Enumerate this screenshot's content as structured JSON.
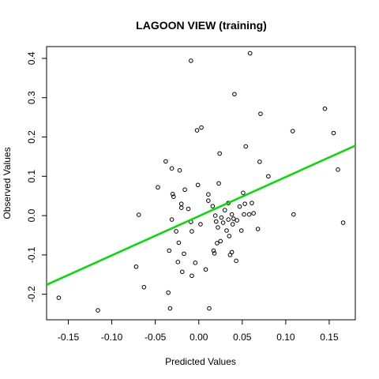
{
  "chart_data": {
    "type": "scatter",
    "title": "LAGOON VIEW (training)",
    "xlabel": "Predicted Values",
    "ylabel": "Observed Values",
    "xlim": [
      -0.175,
      0.18
    ],
    "ylim": [
      -0.265,
      0.43
    ],
    "x_ticks": [
      -0.15,
      -0.1,
      -0.05,
      0.0,
      0.05,
      0.1,
      0.15
    ],
    "x_tick_labels": [
      "-0.15",
      "-0.10",
      "-0.05",
      "0.00",
      "0.05",
      "0.10",
      "0.15"
    ],
    "y_ticks": [
      -0.2,
      -0.1,
      0.0,
      0.1,
      0.2,
      0.3,
      0.4
    ],
    "y_tick_labels": [
      "-0.2",
      "-0.1",
      "0.0",
      "0.1",
      "0.2",
      "0.3",
      "0.4"
    ],
    "grid": false,
    "legend": "none",
    "colors": {
      "points": "#000000",
      "fit_line": "#00dd00",
      "frame": "#000000"
    },
    "fit_line": {
      "x": [
        -0.175,
        0.18
      ],
      "y": [
        -0.176,
        0.178
      ]
    },
    "points": [
      {
        "x": -0.161,
        "y": -0.209
      },
      {
        "x": -0.116,
        "y": -0.241
      },
      {
        "x": -0.069,
        "y": 0.002
      },
      {
        "x": -0.072,
        "y": -0.13
      },
      {
        "x": -0.063,
        "y": -0.182
      },
      {
        "x": -0.047,
        "y": 0.072
      },
      {
        "x": -0.038,
        "y": 0.138
      },
      {
        "x": -0.035,
        "y": -0.196
      },
      {
        "x": -0.033,
        "y": -0.236
      },
      {
        "x": -0.034,
        "y": -0.089
      },
      {
        "x": -0.031,
        "y": 0.12
      },
      {
        "x": -0.031,
        "y": -0.01
      },
      {
        "x": -0.03,
        "y": 0.055
      },
      {
        "x": -0.029,
        "y": 0.048
      },
      {
        "x": -0.026,
        "y": -0.04
      },
      {
        "x": -0.024,
        "y": -0.118
      },
      {
        "x": -0.023,
        "y": -0.069
      },
      {
        "x": -0.022,
        "y": 0.115
      },
      {
        "x": -0.02,
        "y": 0.03
      },
      {
        "x": -0.02,
        "y": 0.02
      },
      {
        "x": -0.019,
        "y": -0.143
      },
      {
        "x": -0.017,
        "y": -0.097
      },
      {
        "x": -0.016,
        "y": 0.066
      },
      {
        "x": -0.012,
        "y": 0.017
      },
      {
        "x": -0.009,
        "y": 0.394
      },
      {
        "x": -0.009,
        "y": -0.016
      },
      {
        "x": -0.008,
        "y": -0.04
      },
      {
        "x": -0.008,
        "y": -0.153
      },
      {
        "x": -0.004,
        "y": -0.12
      },
      {
        "x": -0.002,
        "y": 0.217
      },
      {
        "x": -0.001,
        "y": 0.078
      },
      {
        "x": 0.002,
        "y": -0.022
      },
      {
        "x": 0.003,
        "y": 0.224
      },
      {
        "x": 0.008,
        "y": -0.137
      },
      {
        "x": 0.011,
        "y": 0.038
      },
      {
        "x": 0.011,
        "y": 0.054
      },
      {
        "x": 0.012,
        "y": -0.236
      },
      {
        "x": 0.016,
        "y": 0.024
      },
      {
        "x": 0.017,
        "y": -0.089
      },
      {
        "x": 0.018,
        "y": -0.096
      },
      {
        "x": 0.019,
        "y": 0.0
      },
      {
        "x": 0.02,
        "y": -0.015
      },
      {
        "x": 0.021,
        "y": -0.07
      },
      {
        "x": 0.022,
        "y": -0.03
      },
      {
        "x": 0.023,
        "y": 0.082
      },
      {
        "x": 0.024,
        "y": 0.158
      },
      {
        "x": 0.025,
        "y": -0.065
      },
      {
        "x": 0.026,
        "y": -0.005
      },
      {
        "x": 0.028,
        "y": -0.018
      },
      {
        "x": 0.03,
        "y": 0.014
      },
      {
        "x": 0.032,
        "y": -0.038
      },
      {
        "x": 0.034,
        "y": 0.032
      },
      {
        "x": 0.034,
        "y": -0.01
      },
      {
        "x": 0.035,
        "y": -0.052
      },
      {
        "x": 0.036,
        "y": -0.1
      },
      {
        "x": 0.038,
        "y": 0.003
      },
      {
        "x": 0.038,
        "y": -0.093
      },
      {
        "x": 0.039,
        "y": -0.022
      },
      {
        "x": 0.04,
        "y": -0.008
      },
      {
        "x": 0.041,
        "y": 0.309
      },
      {
        "x": 0.043,
        "y": -0.115
      },
      {
        "x": 0.044,
        "y": -0.012
      },
      {
        "x": 0.047,
        "y": 0.023
      },
      {
        "x": 0.049,
        "y": -0.038
      },
      {
        "x": 0.051,
        "y": 0.058
      },
      {
        "x": 0.052,
        "y": 0.003
      },
      {
        "x": 0.053,
        "y": 0.03
      },
      {
        "x": 0.054,
        "y": 0.176
      },
      {
        "x": 0.058,
        "y": 0.003
      },
      {
        "x": 0.059,
        "y": 0.413
      },
      {
        "x": 0.061,
        "y": 0.032
      },
      {
        "x": 0.063,
        "y": 0.006
      },
      {
        "x": 0.068,
        "y": -0.034
      },
      {
        "x": 0.07,
        "y": 0.137
      },
      {
        "x": 0.071,
        "y": 0.259
      },
      {
        "x": 0.08,
        "y": 0.1
      },
      {
        "x": 0.108,
        "y": 0.215
      },
      {
        "x": 0.109,
        "y": 0.003
      },
      {
        "x": 0.145,
        "y": 0.272
      },
      {
        "x": 0.155,
        "y": 0.21
      },
      {
        "x": 0.16,
        "y": 0.117
      },
      {
        "x": 0.166,
        "y": -0.018
      }
    ]
  }
}
